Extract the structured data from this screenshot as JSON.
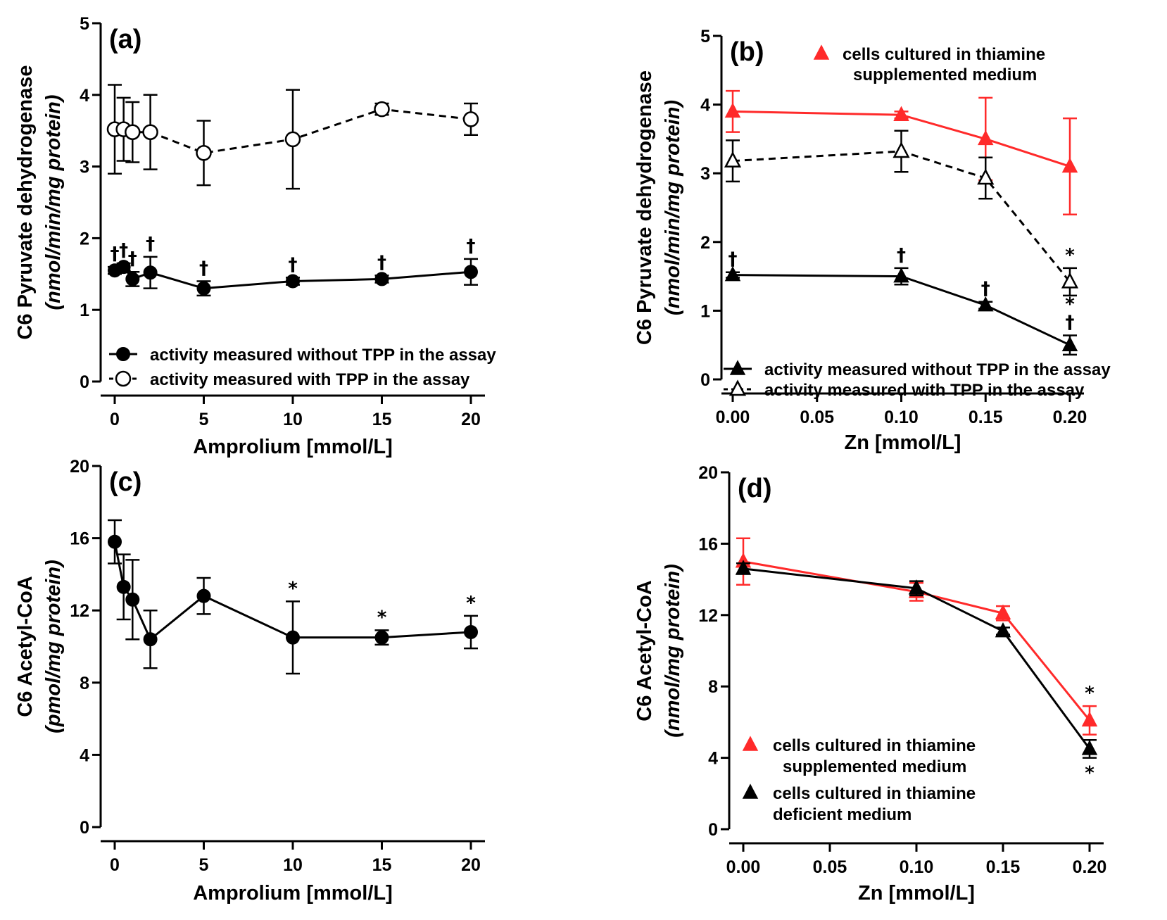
{
  "colors": {
    "black": "#000000",
    "red": "#ff2a2a"
  },
  "chart_data": [
    {
      "panel": "(a)",
      "type": "line",
      "xlabel": "Amprolium [mmol/L]",
      "ylabel": "C6 Pyruvate dehydrogenase",
      "ylabel_unit": "(nmol/min/mg protein)",
      "xlim": [
        0,
        20
      ],
      "ylim": [
        0,
        5
      ],
      "xticks": [
        0,
        5,
        10,
        15,
        20
      ],
      "yticks": [
        0,
        1,
        2,
        3,
        4,
        5
      ],
      "series": [
        {
          "name": "activity measured without TPP in the assay",
          "marker": "filled-circle",
          "color": "#000000",
          "dash": "solid",
          "x": [
            0,
            0.5,
            1,
            2,
            5,
            10,
            15,
            20
          ],
          "y": [
            1.55,
            1.6,
            1.43,
            1.52,
            1.3,
            1.4,
            1.43,
            1.53
          ],
          "err": [
            0.05,
            0.05,
            0.1,
            0.22,
            0.1,
            0.05,
            0.05,
            0.18
          ],
          "annotations": [
            {
              "x": 0,
              "text": "†"
            },
            {
              "x": 0.5,
              "text": "†"
            },
            {
              "x": 1,
              "text": "†"
            },
            {
              "x": 2,
              "text": "†"
            },
            {
              "x": 5,
              "text": "†"
            },
            {
              "x": 10,
              "text": "†"
            },
            {
              "x": 15,
              "text": "†"
            },
            {
              "x": 20,
              "text": "†"
            }
          ]
        },
        {
          "name": "activity measured with TPP in the assay",
          "marker": "open-circle",
          "color": "#000000",
          "dash": "dashed",
          "x": [
            0,
            0.5,
            1,
            2,
            5,
            10,
            15,
            20
          ],
          "y": [
            3.52,
            3.52,
            3.48,
            3.48,
            3.19,
            3.38,
            3.8,
            3.66
          ],
          "err": [
            0.62,
            0.44,
            0.42,
            0.52,
            0.45,
            0.69,
            0.08,
            0.22
          ],
          "annotations": []
        }
      ],
      "legend_position": "bottom-left"
    },
    {
      "panel": "(b)",
      "type": "line",
      "xlabel": "Zn [mmol/L]",
      "ylabel": "C6 Pyruvate dehydrogenase",
      "ylabel_unit": "(nmol/min/mg protein)",
      "xlim": [
        0,
        0.2
      ],
      "ylim": [
        0,
        5
      ],
      "xticks": [
        "0.00",
        "0.05",
        "0.10",
        "0.15",
        "0.20"
      ],
      "yticks": [
        0,
        1,
        2,
        3,
        4,
        5
      ],
      "series": [
        {
          "name": "cells cultured in thiamine supplemented medium",
          "name_lines": [
            "cells cultured in thiamine",
            "supplemented medium"
          ],
          "marker": "filled-triangle",
          "color": "#ff2a2a",
          "dash": "solid",
          "x": [
            0,
            0.1,
            0.15,
            0.2
          ],
          "y": [
            3.9,
            3.85,
            3.5,
            3.1
          ],
          "err": [
            0.3,
            0.05,
            0.6,
            0.7
          ],
          "annotations": []
        },
        {
          "name": "activity measured without TPP in the assay",
          "marker": "filled-triangle",
          "color": "#000000",
          "dash": "solid",
          "x": [
            0,
            0.1,
            0.15,
            0.2
          ],
          "y": [
            1.52,
            1.5,
            1.08,
            0.5
          ],
          "err": [
            0.04,
            0.12,
            0.05,
            0.14
          ],
          "annotations": [
            {
              "x": 0,
              "text": "†"
            },
            {
              "x": 0.1,
              "text": "†"
            },
            {
              "x": 0.15,
              "text": "†"
            },
            {
              "x": 0.2,
              "text": "†"
            },
            {
              "x": 0.2,
              "text": "*"
            }
          ]
        },
        {
          "name": "activity measured with TPP in the assay",
          "marker": "open-triangle",
          "color": "#000000",
          "dash": "dashed",
          "x": [
            0,
            0.1,
            0.15,
            0.2
          ],
          "y": [
            3.18,
            3.32,
            2.93,
            1.42
          ],
          "err": [
            0.3,
            0.3,
            0.3,
            0.2
          ],
          "annotations": [
            {
              "x": 0.2,
              "text": "*"
            }
          ]
        }
      ],
      "legend_position": "top-right and bottom-left"
    },
    {
      "panel": "(c)",
      "type": "line",
      "xlabel": "Amprolium [mmol/L]",
      "ylabel": "C6 Acetyl-CoA",
      "ylabel_unit": "(pmol/mg protein)",
      "xlim": [
        0,
        20
      ],
      "ylim": [
        0,
        20
      ],
      "xticks": [
        0,
        5,
        10,
        15,
        20
      ],
      "yticks": [
        0,
        4,
        8,
        12,
        16,
        20
      ],
      "series": [
        {
          "name": "Acetyl-CoA",
          "marker": "filled-circle",
          "color": "#000000",
          "dash": "solid",
          "x": [
            0,
            0.5,
            1,
            2,
            5,
            10,
            15,
            20
          ],
          "y": [
            15.8,
            13.3,
            12.6,
            10.4,
            12.8,
            10.5,
            10.5,
            10.8
          ],
          "err": [
            1.2,
            1.8,
            2.2,
            1.6,
            1.0,
            2.0,
            0.4,
            0.9
          ],
          "annotations": [
            {
              "x": 10,
              "text": "*"
            },
            {
              "x": 15,
              "text": "*"
            },
            {
              "x": 20,
              "text": "*"
            }
          ]
        }
      ],
      "legend_position": "none"
    },
    {
      "panel": "(d)",
      "type": "line",
      "xlabel": "Zn [mmol/L]",
      "ylabel": "C6 Acetyl-CoA",
      "ylabel_unit": "(nmol/mg protein)",
      "xlim": [
        0,
        0.2
      ],
      "ylim": [
        0,
        20
      ],
      "xticks": [
        "0.00",
        "0.05",
        "0.10",
        "0.15",
        "0.20"
      ],
      "yticks": [
        0,
        4,
        8,
        12,
        16,
        20
      ],
      "series": [
        {
          "name": "cells cultured in thiamine supplemented medium",
          "name_lines": [
            "cells cultured in thiamine",
            "supplemented medium"
          ],
          "marker": "filled-triangle",
          "color": "#ff2a2a",
          "dash": "solid",
          "x": [
            0,
            0.1,
            0.15,
            0.2
          ],
          "y": [
            15.0,
            13.3,
            12.1,
            6.1
          ],
          "err": [
            1.3,
            0.5,
            0.4,
            0.8
          ],
          "annotations": [
            {
              "x": 0.2,
              "text": "*",
              "side": "above"
            }
          ]
        },
        {
          "name": "cells cultured in thiamine deficient medium",
          "name_lines": [
            "cells cultured in thiamine",
            "deficient medium"
          ],
          "marker": "filled-triangle",
          "color": "#000000",
          "dash": "solid",
          "x": [
            0,
            0.1,
            0.15,
            0.2
          ],
          "y": [
            14.6,
            13.5,
            11.1,
            4.5
          ],
          "err": [
            0.3,
            0.4,
            0.2,
            0.5
          ],
          "annotations": [
            {
              "x": 0.2,
              "text": "*",
              "side": "below"
            }
          ]
        }
      ],
      "legend_position": "bottom-left"
    }
  ]
}
